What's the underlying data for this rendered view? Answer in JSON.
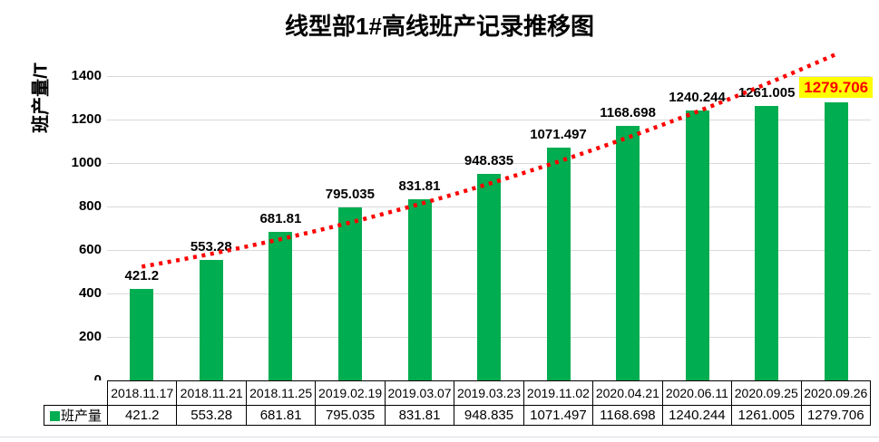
{
  "chart_data": {
    "type": "bar",
    "title": "线型部1#高线班产记录推移图",
    "ylabel": "班产量/T",
    "categories": [
      "2018.11.17",
      "2018.11.21",
      "2018.11.25",
      "2019.02.19",
      "2019.03.07",
      "2019.03.23",
      "2019.11.02",
      "2020.04.21",
      "2020.06.11",
      "2020.09.25",
      "2020.09.26"
    ],
    "series": [
      {
        "name": "班产量",
        "color": "#00AD50",
        "values": [
          421.2,
          553.28,
          681.81,
          795.035,
          831.81,
          948.835,
          1071.497,
          1168.698,
          1240.244,
          1261.005,
          1279.706
        ],
        "labels": [
          "421.2",
          "553.28",
          "681.81",
          "795.035",
          "831.81",
          "948.835",
          "1071.497",
          "1168.698",
          "1240.244",
          "1261.005",
          "1279.706"
        ]
      }
    ],
    "yticks": [
      0,
      200,
      400,
      600,
      800,
      1000,
      1200,
      1400
    ],
    "ylim": [
      0,
      1520
    ],
    "grid": true,
    "gridline_color": "#D9D9D9",
    "legend": {
      "label": "班产量",
      "position": "table-left"
    },
    "trendline": {
      "style": "dotted",
      "color": "#FF0000",
      "start_value": 523,
      "mid_value": 904,
      "end_value": 1500
    },
    "highlight_last_label": {
      "bg": "#FFFF00",
      "color": "#FF0000"
    }
  }
}
